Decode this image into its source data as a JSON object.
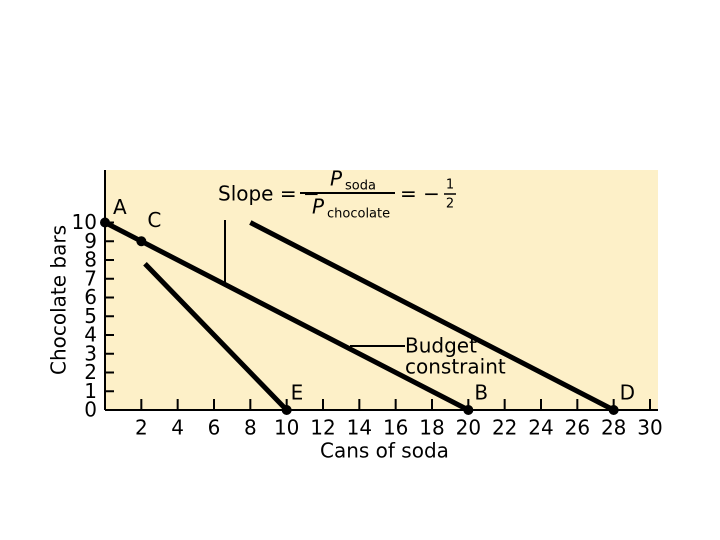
{
  "chart_data": {
    "type": "line",
    "x_label": "Cans of soda",
    "y_label": "Chocolate bars",
    "xlim": [
      0,
      30
    ],
    "ylim": [
      0,
      12.8
    ],
    "xticks": [
      2,
      4,
      6,
      8,
      10,
      12,
      14,
      16,
      18,
      20,
      22,
      24,
      26,
      28,
      30
    ],
    "yticks": [
      0,
      1,
      2,
      3,
      4,
      5,
      6,
      7,
      8,
      9,
      10
    ],
    "background": "#fdf0c8",
    "series": [
      {
        "color": "#000000",
        "x": [
          0,
          20
        ],
        "values": [
          10,
          0
        ]
      },
      {
        "color": "#000000",
        "x": [
          8,
          28
        ],
        "values": [
          10,
          0
        ]
      },
      {
        "color": "#000000",
        "x": [
          2.2,
          10
        ],
        "values": [
          7.8,
          0
        ]
      }
    ],
    "points": [
      {
        "label": "A",
        "x": 0,
        "y": 10
      },
      {
        "label": "C",
        "x": 2,
        "y": 9
      },
      {
        "label": "E",
        "x": 10,
        "y": 0
      },
      {
        "label": "B",
        "x": 20,
        "y": 0
      },
      {
        "label": "D",
        "x": 28,
        "y": 0
      }
    ],
    "slope_annotation": {
      "prefix": "Slope = −",
      "numerator": "P",
      "numerator_sub": "soda",
      "denominator": "P",
      "denominator_sub": "chocolate",
      "equals": "= −",
      "fraction_num": "1",
      "fraction_den": "2"
    },
    "budget_annotation": [
      "Budget",
      "constraint"
    ]
  }
}
